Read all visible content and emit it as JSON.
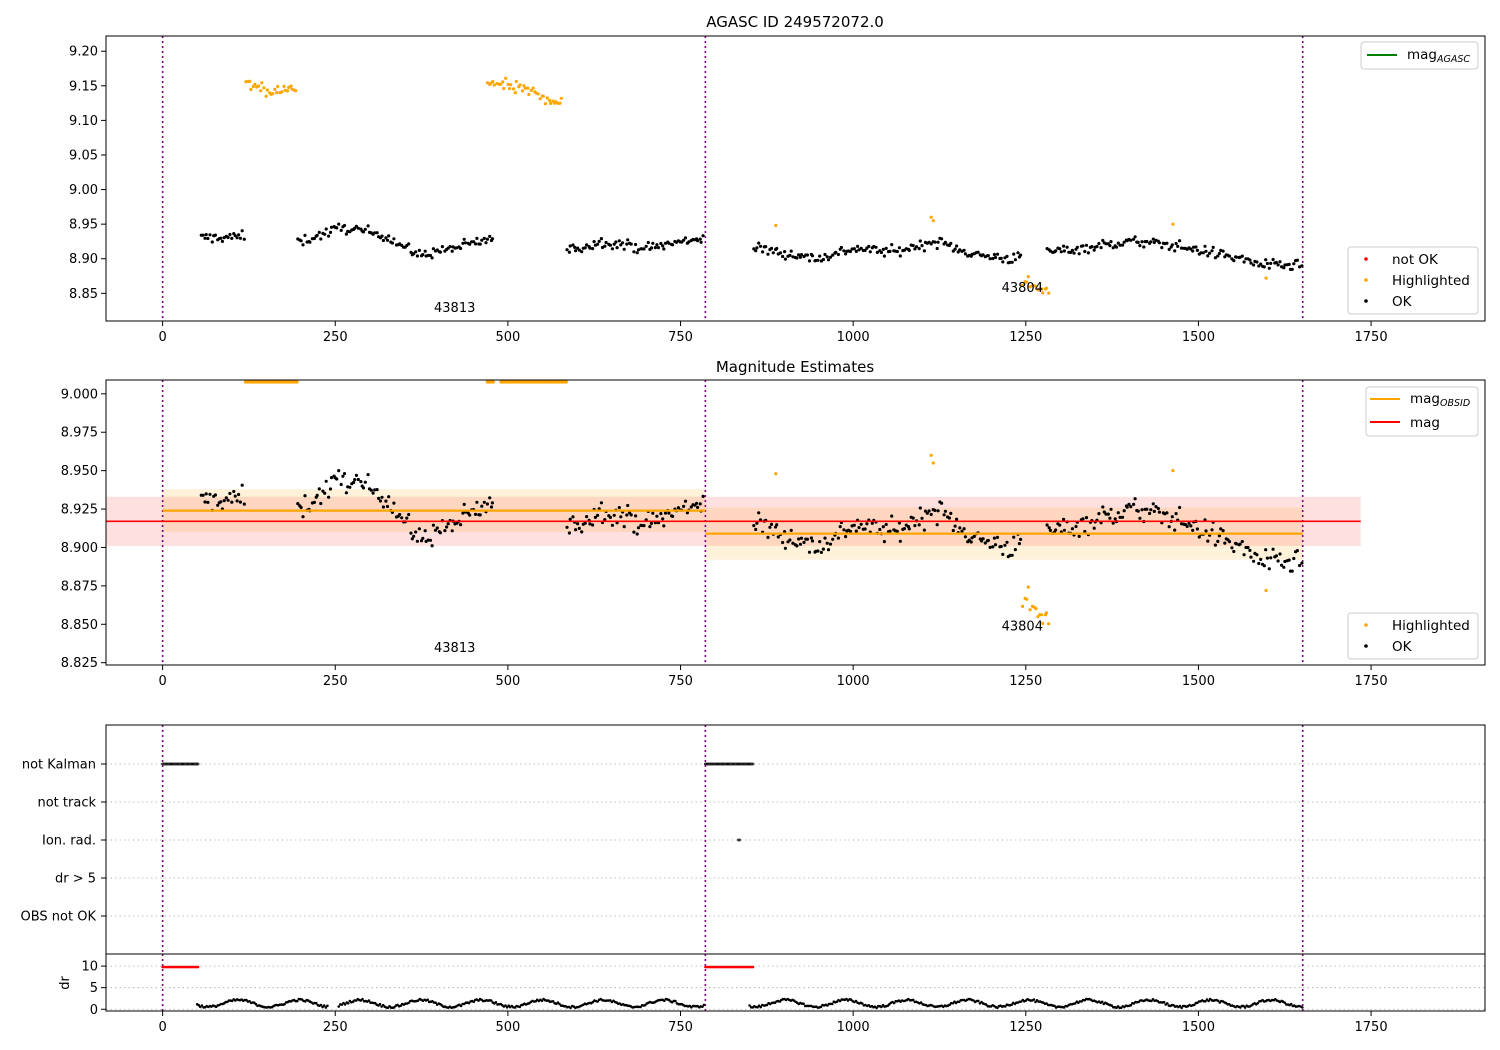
{
  "chart_data": [
    {
      "type": "scatter",
      "title": "AGASC ID 249572072.0",
      "xlabel": "",
      "ylabel": "",
      "xlim": [
        -82,
        1915
      ],
      "ylim": [
        8.81,
        9.222
      ],
      "xticks": [
        0,
        250,
        500,
        750,
        1000,
        1250,
        1500,
        1750
      ],
      "yticks": [
        "8.85",
        "8.90",
        "8.95",
        "9.00",
        "9.05",
        "9.10",
        "9.15",
        "9.20"
      ],
      "obsid_boundaries": [
        0,
        786,
        1651
      ],
      "annotations": [
        {
          "text": "43813",
          "x": 393,
          "y": 8.823
        },
        {
          "text": "43804",
          "x": 1215,
          "y": 8.852
        }
      ],
      "legend_top": [
        {
          "label": "mag",
          "sub": "AGASC",
          "color": "#008000"
        }
      ],
      "legend_bottom": [
        {
          "label": "not OK",
          "color": "#ff0000"
        },
        {
          "label": "Highlighted",
          "color": "#ffa500"
        },
        {
          "label": "OK",
          "color": "#000000"
        }
      ],
      "series": [
        {
          "name": "OK",
          "color": "#000000",
          "trend": [
            [
              55,
              8.93
            ],
            [
              120,
              8.932
            ],
            [
              200,
              8.925
            ],
            [
              260,
              8.945
            ],
            [
              320,
              8.935
            ],
            [
              370,
              8.905
            ],
            [
              420,
              8.915
            ],
            [
              480,
              8.93
            ],
            [
              580,
              8.91
            ],
            [
              640,
              8.925
            ],
            [
              700,
              8.915
            ],
            [
              780,
              8.93
            ],
            [
              860,
              8.915
            ],
            [
              950,
              8.9
            ],
            [
              1000,
              8.915
            ],
            [
              1060,
              8.91
            ],
            [
              1120,
              8.925
            ],
            [
              1180,
              8.905
            ],
            [
              1230,
              8.9
            ],
            [
              1280,
              8.91
            ],
            [
              1330,
              8.915
            ],
            [
              1400,
              8.925
            ],
            [
              1460,
              8.92
            ],
            [
              1540,
              8.905
            ],
            [
              1600,
              8.89
            ],
            [
              1651,
              8.89
            ]
          ],
          "segments": [
            [
              55,
              120
            ],
            [
              195,
              480
            ],
            [
              585,
              785
            ],
            [
              855,
              1245
            ],
            [
              1280,
              1651
            ]
          ],
          "noise": 0.01
        },
        {
          "name": "Highlighted",
          "color": "#ffa500",
          "trend": [
            [
              120,
              9.155
            ],
            [
              150,
              9.14
            ],
            [
              190,
              9.145
            ],
            [
              470,
              9.155
            ],
            [
              520,
              9.145
            ],
            [
              580,
              9.125
            ],
            [
              1245,
              8.865
            ],
            [
              1285,
              8.855
            ]
          ],
          "segments": [
            [
              120,
              195
            ],
            [
              470,
              580
            ],
            [
              1245,
              1285
            ]
          ],
          "noise": 0.012,
          "extra": [
            [
              888,
              8.948
            ],
            [
              1113,
              8.96
            ],
            [
              1116,
              8.955
            ],
            [
              1463,
              8.95
            ],
            [
              1598,
              8.872
            ]
          ]
        }
      ]
    },
    {
      "type": "scatter",
      "title": "Magnitude Estimates",
      "xlabel": "",
      "ylabel": "",
      "xlim": [
        -82,
        1915
      ],
      "ylim": [
        8.8235,
        9.009
      ],
      "xticks": [
        0,
        250,
        500,
        750,
        1000,
        1250,
        1500,
        1750
      ],
      "yticks": [
        "8.825",
        "8.850",
        "8.875",
        "8.900",
        "8.925",
        "8.950",
        "8.975",
        "9.000"
      ],
      "obsid_boundaries": [
        0,
        786,
        1651
      ],
      "annotations": [
        {
          "text": "43813",
          "x": 393,
          "y": 8.832
        },
        {
          "text": "43804",
          "x": 1215,
          "y": 8.846
        }
      ],
      "legend_top": [
        {
          "label": "mag",
          "sub": "OBSID",
          "color": "#ffa500"
        },
        {
          "label": "mag",
          "sub": "",
          "color": "#ff0000"
        }
      ],
      "legend_bottom": [
        {
          "label": "Highlighted",
          "color": "#ffa500"
        },
        {
          "label": "OK",
          "color": "#000000"
        }
      ],
      "mag": {
        "value": 8.917,
        "err": 0.016,
        "x_range": [
          -82,
          1735
        ]
      },
      "mag_obsid": [
        {
          "x_range": [
            0,
            786
          ],
          "value": 8.924,
          "err": 0.014
        },
        {
          "x_range": [
            786,
            1651
          ],
          "value": 8.909,
          "err": 0.017
        }
      ],
      "clipped_highlighted": [
        [
          120,
          195
        ],
        [
          470,
          480
        ],
        [
          490,
          585
        ]
      ]
    },
    {
      "type": "scatter",
      "title": "",
      "flags": [
        "not Kalman",
        "not track",
        "Ion. rad.",
        "dr > 5",
        "OBS not OK"
      ],
      "flag_points": [
        {
          "flag": "not Kalman",
          "x_ranges": [
            [
              0,
              52
            ],
            [
              786,
              855
            ]
          ]
        },
        {
          "flag": "Ion. rad.",
          "x_ranges": [
            [
              834,
              836
            ]
          ]
        }
      ],
      "xlim": [
        -82,
        1915
      ],
      "obsid_boundaries": [
        0,
        786,
        1651
      ]
    },
    {
      "type": "scatter",
      "title": "",
      "ylabel": "dr",
      "xlim": [
        -82,
        1915
      ],
      "ylim": [
        -0.4,
        12.8
      ],
      "xticks": [
        0,
        250,
        500,
        750,
        1000,
        1250,
        1500,
        1750
      ],
      "yticks": [
        "0",
        "5",
        "10"
      ],
      "obsid_boundaries": [
        0,
        786,
        1651
      ],
      "red_points": [
        [
          0,
          52
        ],
        [
          786,
          855
        ]
      ],
      "red_value": 9.8,
      "black_segments": [
        [
          50,
          240
        ],
        [
          255,
          785
        ],
        [
          850,
          1651
        ]
      ]
    }
  ]
}
